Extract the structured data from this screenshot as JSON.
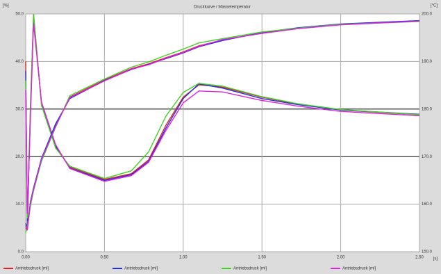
{
  "chart_data": {
    "type": "line",
    "title": "Druckkurve / Massetemperatur",
    "y_label": "[%]",
    "y2_label": "[°C]",
    "x_unit": "[s]",
    "x": [
      0,
      0.01,
      0.03,
      0.05,
      0.1,
      0.19,
      0.28,
      0.5,
      0.67,
      0.78,
      0.89,
      1.0,
      1.1,
      1.25,
      1.5,
      1.73,
      2.0,
      2.5
    ],
    "xlim": [
      0,
      2.5
    ],
    "xticks": [
      {
        "value": 0,
        "label": "0.00"
      },
      {
        "value": 0.5,
        "label": "0.50"
      },
      {
        "value": 1,
        "label": "1.00"
      },
      {
        "value": 1.5,
        "label": "1.50"
      },
      {
        "value": 2,
        "label": "2.00"
      },
      {
        "value": 2.5,
        "label": "2.50"
      }
    ],
    "ylim": [
      0,
      50
    ],
    "yticks": [
      {
        "value": 0,
        "label": "0.0"
      },
      {
        "value": 10,
        "label": "10.0"
      },
      {
        "value": 20,
        "label": "20.0"
      },
      {
        "value": 30,
        "label": "30.0"
      },
      {
        "value": 40,
        "label": "40.0"
      },
      {
        "value": 50,
        "label": "50.0"
      }
    ],
    "y2lim": [
      150,
      200
    ],
    "y2ticks": [
      {
        "value": 150,
        "label": "150.0"
      },
      {
        "value": 160,
        "label": "160.0"
      },
      {
        "value": 170,
        "label": "170.0"
      },
      {
        "value": 180,
        "label": "180.0"
      },
      {
        "value": 190,
        "label": "190.0"
      },
      {
        "value": 200,
        "label": "200.0"
      }
    ],
    "grid": true,
    "series": [
      {
        "name": "Antriebsdruck [ml]",
        "color": "#e02020",
        "values": [
          40,
          5,
          30,
          50,
          31,
          22,
          17.8,
          15.2,
          16.4,
          19.3,
          26.6,
          32.5,
          35.1,
          34.6,
          32.5,
          31,
          29.8,
          28.8
        ]
      },
      {
        "name": "Antriebsdruck [ml]",
        "color": "#2030e0",
        "values": [
          38,
          6,
          29,
          49,
          31.3,
          22.2,
          17.6,
          15,
          16.2,
          19,
          26,
          32.2,
          35.3,
          34.4,
          32.2,
          30.9,
          29.8,
          28.9
        ]
      },
      {
        "name": "Antriebsdruck [ml]",
        "color": "#40d020",
        "values": [
          36,
          7,
          31,
          50,
          30.8,
          21.8,
          18,
          15.4,
          17,
          21,
          28.5,
          33.5,
          35.4,
          34.8,
          32.6,
          31.1,
          29.9,
          28.8
        ]
      },
      {
        "name": "Antriebsdruck [ml]",
        "color": "#e020e0",
        "values": [
          34,
          8,
          28,
          48,
          31.5,
          22.5,
          17.5,
          14.8,
          16,
          18.8,
          25.5,
          31.3,
          33.8,
          33.6,
          31.8,
          30.6,
          29.5,
          28.6
        ]
      },
      {
        "color": "#e02020",
        "axis": "y2",
        "values": [
          155,
          154.7,
          160,
          163,
          169.3,
          176.6,
          182.5,
          186.1,
          188.5,
          189.5,
          190.8,
          192,
          193.3,
          194.5,
          196,
          197,
          197.8,
          198.5
        ]
      },
      {
        "color": "#2030e0",
        "axis": "y2",
        "values": [
          156,
          155,
          160.5,
          163.4,
          169.6,
          176.9,
          182.2,
          186,
          188.3,
          189.4,
          190.6,
          191.8,
          193.1,
          194.4,
          196.1,
          197.1,
          197.9,
          198.6
        ]
      },
      {
        "color": "#40d020",
        "axis": "y2",
        "values": [
          154,
          155.3,
          159.6,
          162.8,
          169,
          176.2,
          182.8,
          186.3,
          188.8,
          189.9,
          191.3,
          192.6,
          193.9,
          194.8,
          196.2,
          197,
          197.8,
          198.4
        ]
      },
      {
        "color": "#e020e0",
        "axis": "y2",
        "values": [
          155.5,
          154.5,
          160.2,
          163.1,
          169.4,
          176.4,
          182.4,
          185.9,
          188.4,
          189.3,
          190.7,
          191.9,
          193.2,
          194.6,
          195.9,
          196.9,
          197.7,
          198.5
        ]
      }
    ]
  }
}
